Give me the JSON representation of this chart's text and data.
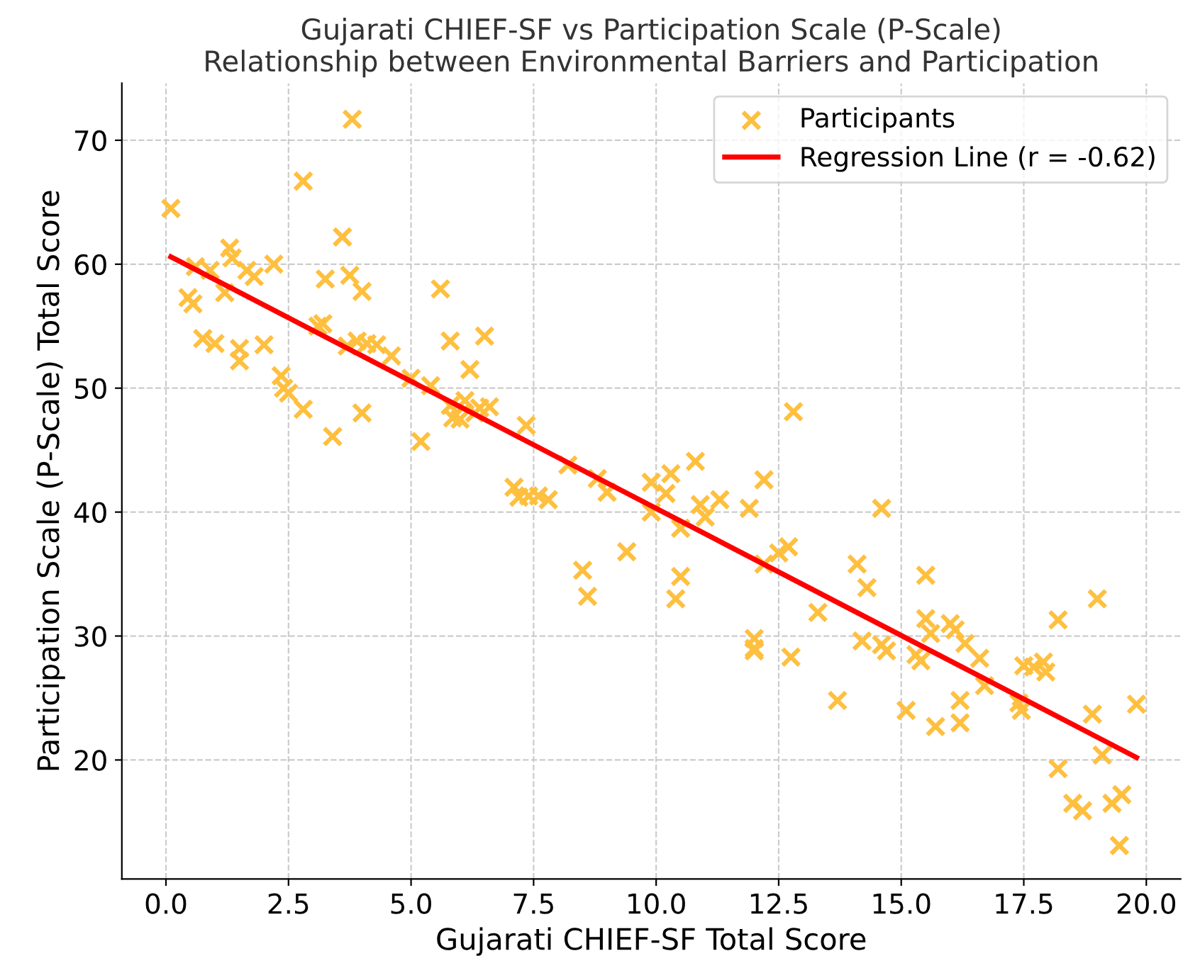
{
  "chart_data": {
    "type": "scatter",
    "title": "Gujarati CHIEF-SF vs Participation Scale (P-Scale)\nRelationship between Environmental Barriers and Participation",
    "xlabel": "Gujarati CHIEF-SF Total Score",
    "ylabel": "Participation Scale (P-Scale) Total Score",
    "xlim": [
      -0.9,
      20.7
    ],
    "ylim": [
      10.4,
      74.6
    ],
    "xticks": [
      {
        "value": 0,
        "label": "0.0"
      },
      {
        "value": 2.5,
        "label": "2.5"
      },
      {
        "value": 5,
        "label": "5.0"
      },
      {
        "value": 7.5,
        "label": "7.5"
      },
      {
        "value": 10,
        "label": "10.0"
      },
      {
        "value": 12.5,
        "label": "12.5"
      },
      {
        "value": 15,
        "label": "15.0"
      },
      {
        "value": 17.5,
        "label": "17.5"
      },
      {
        "value": 20,
        "label": "20.0"
      }
    ],
    "yticks": [
      20,
      30,
      40,
      50,
      60,
      70
    ],
    "grid": true,
    "legend": "top right",
    "series": [
      {
        "name": "Participants",
        "marker": "cross",
        "color": "#ffbf3f",
        "x": [
          0.1,
          0.45,
          0.55,
          0.6,
          0.75,
          0.9,
          1.0,
          1.2,
          1.3,
          1.35,
          1.5,
          1.5,
          1.65,
          1.8,
          2.0,
          2.2,
          2.35,
          2.4,
          2.5,
          2.8,
          2.8,
          3.1,
          3.2,
          3.25,
          3.4,
          3.6,
          3.7,
          3.75,
          3.8,
          3.9,
          4.0,
          4.0,
          4.1,
          4.3,
          4.6,
          5.0,
          5.2,
          5.4,
          5.6,
          5.8,
          5.8,
          5.85,
          6.0,
          6.1,
          6.2,
          6.3,
          6.4,
          6.5,
          6.6,
          7.1,
          7.2,
          7.35,
          7.4,
          7.6,
          7.8,
          8.2,
          8.5,
          8.6,
          8.8,
          9.0,
          9.4,
          9.9,
          9.9,
          10.2,
          10.3,
          10.4,
          10.5,
          10.5,
          10.8,
          10.9,
          11.0,
          11.3,
          11.9,
          12.0,
          12.0,
          12.0,
          12.2,
          12.2,
          12.5,
          12.7,
          12.8,
          12.75,
          13.3,
          13.7,
          14.1,
          14.3,
          14.2,
          14.6,
          14.6,
          14.7,
          15.1,
          15.3,
          15.4,
          15.5,
          15.5,
          15.6,
          15.7,
          16.0,
          16.1,
          16.2,
          16.2,
          16.3,
          16.6,
          16.7,
          17.4,
          17.45,
          17.5,
          17.7,
          17.9,
          17.95,
          18.2,
          18.2,
          18.5,
          18.7,
          18.9,
          19.0,
          19.1,
          19.3,
          19.5,
          19.45,
          19.8
        ],
        "values": [
          64.5,
          57.3,
          56.8,
          59.8,
          54,
          59.5,
          53.6,
          57.7,
          61.3,
          60.5,
          53.2,
          52.2,
          59.5,
          59,
          53.5,
          60,
          51,
          50,
          49.6,
          66.7,
          48.3,
          55,
          55.2,
          58.8,
          46.1,
          62.2,
          53.4,
          59.1,
          71.7,
          53.8,
          48,
          57.8,
          53.6,
          53.5,
          52.6,
          50.8,
          45.7,
          50.2,
          58,
          53.8,
          48.6,
          47.6,
          47.5,
          49,
          51.5,
          48,
          48.4,
          54.2,
          48.5,
          42,
          41.2,
          47,
          41.3,
          41.3,
          41,
          43.8,
          35.3,
          33.2,
          42.7,
          41.6,
          36.8,
          42.4,
          40,
          41.5,
          43.1,
          33,
          38.7,
          34.8,
          44.1,
          40.6,
          39.6,
          41,
          40.3,
          29.8,
          29,
          28.8,
          42.6,
          35.8,
          36.7,
          37.2,
          48.1,
          28.3,
          31.9,
          24.8,
          35.8,
          33.9,
          29.6,
          29.3,
          40.3,
          28.8,
          24,
          28.5,
          28,
          34.9,
          31.4,
          30.2,
          22.7,
          31,
          30.5,
          24.8,
          23,
          29.4,
          28.2,
          26,
          24.6,
          24,
          27.6,
          27.5,
          27.9,
          27.1,
          31.3,
          19.3,
          16.5,
          15.9,
          23.7,
          33,
          20.4,
          16.5,
          17.2,
          13.1,
          24.5
        ]
      },
      {
        "name": "Regression Line (r = -0.62)",
        "type": "line",
        "line_style": "solid",
        "color": "#ff0000",
        "x": [
          0.1,
          19.8
        ],
        "values": [
          60.6,
          20.2
        ]
      }
    ]
  }
}
